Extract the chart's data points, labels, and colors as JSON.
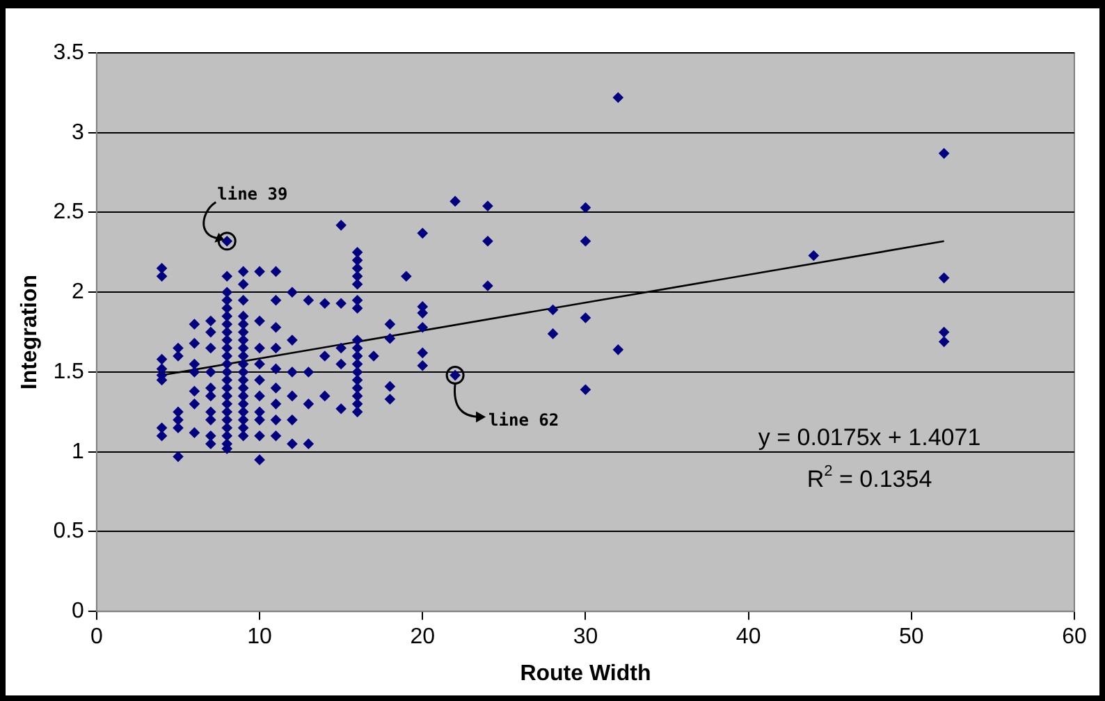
{
  "chart_data": {
    "type": "scatter",
    "xlabel": "Route Width",
    "ylabel": "Integration",
    "xlim": [
      0,
      60
    ],
    "xticks": [
      0,
      10,
      20,
      30,
      40,
      50,
      60
    ],
    "ylim": [
      0,
      3.5
    ],
    "yticks": [
      0,
      0.5,
      1,
      1.5,
      2,
      2.5,
      3,
      3.5
    ],
    "grid": "y",
    "legend": false,
    "marker": "diamond",
    "series": [
      {
        "type": "scatter",
        "color": "#000080",
        "x": [
          4,
          4,
          4,
          4,
          4,
          4,
          4,
          4,
          5,
          5,
          5,
          5,
          5,
          5,
          6,
          6,
          6,
          6,
          6,
          6,
          6,
          7,
          7,
          7,
          7,
          7,
          7,
          7,
          7,
          7,
          7,
          8,
          8,
          8,
          8,
          8,
          8,
          8,
          8,
          8,
          8,
          8,
          8,
          8,
          8,
          8,
          8,
          8,
          8,
          8,
          8,
          8,
          8,
          8,
          9,
          9,
          9,
          9,
          9,
          9,
          9,
          9,
          9,
          9,
          9,
          9,
          9,
          9,
          9,
          9,
          9,
          9,
          9,
          10,
          10,
          10,
          10,
          10,
          10,
          10,
          10,
          10,
          10,
          11,
          11,
          11,
          11,
          11,
          11,
          11,
          11,
          11,
          12,
          12,
          12,
          12,
          12,
          12,
          13,
          13,
          13,
          13,
          14,
          14,
          14,
          15,
          15,
          15,
          15,
          15,
          16,
          16,
          16,
          16,
          16,
          16,
          16,
          16,
          16,
          16,
          16,
          16,
          16,
          16,
          16,
          16,
          16,
          17,
          18,
          18,
          18,
          18,
          19,
          20,
          20,
          20,
          20,
          20,
          20,
          22,
          22,
          24,
          24,
          24,
          28,
          28,
          30,
          30,
          30,
          30,
          32,
          32,
          44,
          52,
          52,
          52,
          52
        ],
        "values": [
          2.15,
          2.1,
          1.58,
          1.52,
          1.48,
          1.45,
          1.15,
          1.1,
          1.65,
          1.6,
          1.25,
          1.2,
          1.15,
          0.97,
          1.8,
          1.68,
          1.55,
          1.5,
          1.38,
          1.3,
          1.12,
          1.82,
          1.75,
          1.65,
          1.5,
          1.4,
          1.35,
          1.25,
          1.2,
          1.1,
          1.05,
          2.32,
          2.1,
          2.0,
          1.95,
          1.9,
          1.85,
          1.8,
          1.75,
          1.7,
          1.65,
          1.6,
          1.55,
          1.5,
          1.45,
          1.4,
          1.35,
          1.3,
          1.25,
          1.2,
          1.15,
          1.1,
          1.05,
          1.02,
          2.13,
          2.05,
          1.95,
          1.85,
          1.8,
          1.75,
          1.7,
          1.65,
          1.6,
          1.55,
          1.5,
          1.45,
          1.4,
          1.35,
          1.3,
          1.25,
          1.2,
          1.15,
          1.1,
          2.13,
          1.82,
          1.65,
          1.55,
          1.45,
          1.35,
          1.25,
          1.2,
          1.1,
          0.95,
          2.13,
          1.95,
          1.78,
          1.65,
          1.52,
          1.4,
          1.3,
          1.2,
          1.1,
          2.0,
          1.7,
          1.5,
          1.35,
          1.2,
          1.05,
          1.95,
          1.5,
          1.3,
          1.05,
          1.93,
          1.6,
          1.35,
          2.42,
          1.93,
          1.65,
          1.55,
          1.27,
          2.25,
          2.2,
          2.15,
          2.1,
          2.05,
          1.95,
          1.9,
          1.7,
          1.65,
          1.6,
          1.55,
          1.5,
          1.45,
          1.4,
          1.35,
          1.3,
          1.25,
          1.6,
          1.8,
          1.71,
          1.41,
          1.33,
          2.1,
          2.37,
          1.91,
          1.87,
          1.78,
          1.62,
          1.54,
          1.48,
          2.57,
          2.54,
          2.32,
          2.04,
          1.89,
          1.74,
          2.53,
          2.32,
          1.84,
          1.39,
          3.22,
          1.64,
          2.23,
          2.87,
          2.09,
          1.75,
          1.69
        ]
      },
      {
        "type": "line",
        "color": "#000000",
        "marker": "none",
        "x": [
          4,
          52
        ],
        "values": [
          1.48,
          2.32
        ]
      }
    ],
    "annotations": [
      {
        "text": "line 39",
        "x": 8,
        "y": 2.32
      },
      {
        "text": "line 62",
        "x": 22,
        "y": 1.48
      },
      "y = 0.0175x + 1.4071",
      "R$^{2}$ = 0.1354"
    ]
  }
}
